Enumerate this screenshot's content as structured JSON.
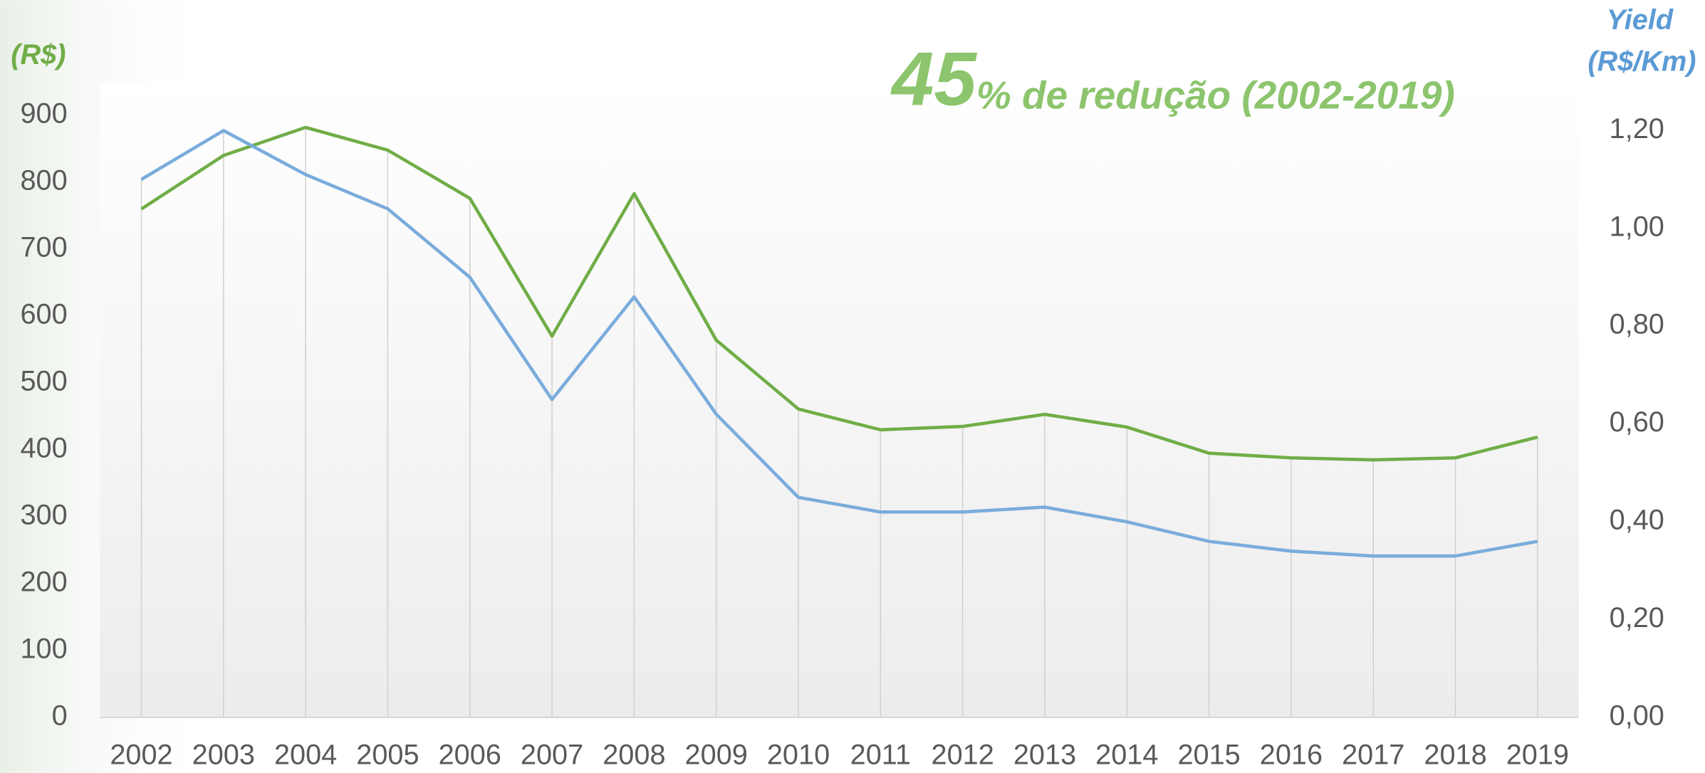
{
  "chart_data": {
    "type": "line",
    "title_number": "45",
    "title_text": "% de redução (2002-2019)",
    "ylabel": "(R$)",
    "y2label": [
      "Yield",
      "(R$/Km)"
    ],
    "categories": [
      "2002",
      "2003",
      "2004",
      "2005",
      "2006",
      "2007",
      "2008",
      "2009",
      "2010",
      "2011",
      "2012",
      "2013",
      "2014",
      "2015",
      "2016",
      "2017",
      "2018",
      "2019"
    ],
    "series": [
      {
        "color": "#70ad47",
        "axis": "y",
        "values": [
          760,
          840,
          882,
          848,
          776,
          570,
          783,
          564,
          461,
          430,
          435,
          453,
          434,
          395,
          388,
          385,
          388,
          419
        ]
      },
      {
        "color": "#7aacdc",
        "axis": "y2",
        "values": [
          1.1,
          1.2,
          1.11,
          1.04,
          0.9,
          0.65,
          0.86,
          0.62,
          0.45,
          0.42,
          0.42,
          0.43,
          0.4,
          0.36,
          0.34,
          0.33,
          0.33,
          0.36
        ]
      }
    ],
    "ylim": [
      0,
      900
    ],
    "yticks": [
      0,
      100,
      200,
      300,
      400,
      500,
      600,
      700,
      800,
      900
    ],
    "y2lim": [
      0,
      1.2
    ],
    "y2ticks": [
      {
        "value": 0,
        "label": "0,00"
      },
      {
        "value": 0.2,
        "label": "0,20"
      },
      {
        "value": 0.4,
        "label": "0,40"
      },
      {
        "value": 0.6,
        "label": "0,60"
      },
      {
        "value": 0.8,
        "label": "0,80"
      },
      {
        "value": 1.0,
        "label": "1,00"
      },
      {
        "value": 1.2,
        "label": "1,20"
      }
    ],
    "grid": true
  }
}
